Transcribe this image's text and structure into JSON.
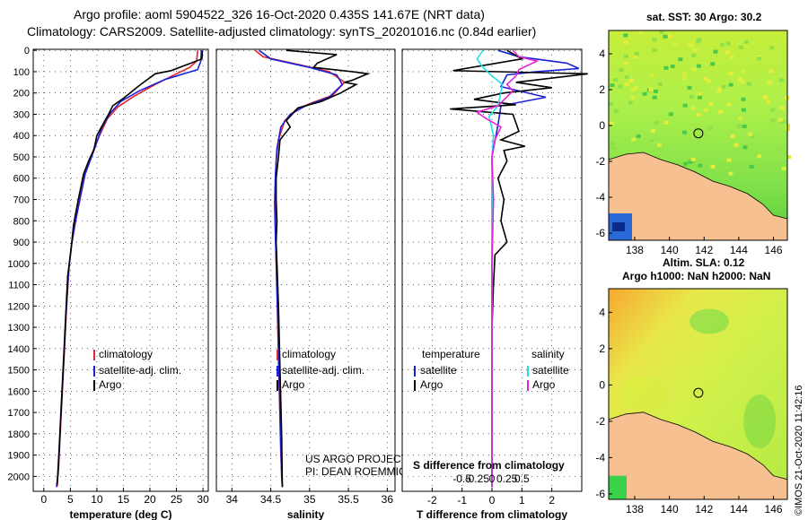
{
  "header": {
    "line1": "Argo profile: aoml 5904522_326 16-Oct-2020 0.435S 141.67E (NRT data)",
    "line2": "Climatology: CARS2009. Satellite-adjusted climatology: synTS_20201016.nc (0.84d earlier)"
  },
  "colors": {
    "climatology": "#e8222a",
    "satellite": "#1a22d8",
    "argo": "#000000",
    "sal_satellite": "#22e0e8",
    "sal_argo": "#e822d8",
    "land": "#f7c090"
  },
  "chart_data": [
    {
      "type": "line",
      "id": "temp",
      "title": "",
      "xlabel": "temperature (deg C)",
      "ylabel": "",
      "xlim": [
        -2,
        31
      ],
      "ylim": [
        2070,
        -5
      ],
      "xticks": [
        0,
        5,
        10,
        15,
        20,
        25,
        30
      ],
      "xticklabels": [
        "0",
        "5",
        "10",
        "15",
        "20",
        "25",
        "30"
      ],
      "yticks": [
        0,
        100,
        200,
        300,
        400,
        500,
        600,
        700,
        800,
        900,
        1000,
        1100,
        1200,
        1300,
        1400,
        1500,
        1600,
        1700,
        1800,
        1900,
        2000
      ],
      "yticklabels": [
        "0",
        "100",
        "200",
        "300",
        "400",
        "500",
        "600",
        "700",
        "800",
        "900",
        "1000",
        "1100",
        "1200",
        "1300",
        "1400",
        "1500",
        "1600",
        "1700",
        "1800",
        "1900",
        "2000"
      ],
      "legend": [
        {
          "label": "climatology",
          "key": "climatology"
        },
        {
          "label": "satellite-adj. clim.",
          "key": "satellite"
        },
        {
          "label": "Argo",
          "key": "argo"
        }
      ],
      "series": [
        {
          "name": "climatology",
          "color": "climatology",
          "points": [
            [
              29.0,
              0
            ],
            [
              28.8,
              50
            ],
            [
              27.5,
              80
            ],
            [
              25,
              110
            ],
            [
              21,
              160
            ],
            [
              17,
              215
            ],
            [
              14,
              265
            ],
            [
              12,
              320
            ],
            [
              10.5,
              400
            ],
            [
              9.3,
              470
            ],
            [
              8,
              550
            ],
            [
              6.9,
              680
            ],
            [
              6,
              800
            ],
            [
              5.3,
              900
            ],
            [
              4.8,
              1000
            ],
            [
              4.3,
              1200
            ],
            [
              3.9,
              1400
            ],
            [
              3.5,
              1600
            ],
            [
              3.1,
              1800
            ],
            [
              2.8,
              1950
            ],
            [
              2.5,
              2050
            ]
          ]
        },
        {
          "name": "satellite-adj. clim.",
          "color": "satellite",
          "points": [
            [
              29.7,
              0
            ],
            [
              29.6,
              50
            ],
            [
              29,
              90
            ],
            [
              23,
              135
            ],
            [
              18,
              190
            ],
            [
              14.5,
              240
            ],
            [
              12.5,
              295
            ],
            [
              11,
              360
            ],
            [
              10,
              430
            ],
            [
              9,
              500
            ],
            [
              7.8,
              580
            ],
            [
              6.8,
              700
            ],
            [
              5.9,
              810
            ],
            [
              5.2,
              920
            ],
            [
              4.7,
              1030
            ],
            [
              4.2,
              1230
            ],
            [
              3.8,
              1430
            ],
            [
              3.4,
              1630
            ],
            [
              3.0,
              1830
            ],
            [
              2.7,
              1980
            ],
            [
              2.4,
              2050
            ]
          ]
        },
        {
          "name": "Argo",
          "color": "argo",
          "points": [
            [
              29.9,
              0
            ],
            [
              29.8,
              40
            ],
            [
              24,
              95
            ],
            [
              21,
              110
            ],
            [
              18,
              165
            ],
            [
              15,
              225
            ],
            [
              13,
              260
            ],
            [
              12.2,
              300
            ],
            [
              11.5,
              330
            ],
            [
              10,
              400
            ],
            [
              9.4,
              470
            ],
            [
              8.6,
              510
            ],
            [
              7.5,
              580
            ],
            [
              6.5,
              700
            ],
            [
              5.6,
              820
            ],
            [
              5.1,
              940
            ],
            [
              4.5,
              1060
            ],
            [
              4.1,
              1260
            ],
            [
              3.7,
              1460
            ],
            [
              3.3,
              1660
            ],
            [
              2.9,
              1860
            ],
            [
              2.6,
              2000
            ],
            [
              2.5,
              2040
            ]
          ]
        }
      ]
    },
    {
      "type": "line",
      "id": "sal",
      "title": "",
      "xlabel": "salinity",
      "ylabel": "",
      "xlim": [
        33.8,
        36.1
      ],
      "ylim": [
        2070,
        -5
      ],
      "xticks": [
        34,
        34.5,
        35,
        35.5,
        36
      ],
      "xticklabels": [
        "34",
        "34.5",
        "35",
        "35.5",
        "36"
      ],
      "legend": [
        {
          "label": "climatology",
          "key": "climatology"
        },
        {
          "label": "satellite-adj. clim.",
          "key": "satellite"
        },
        {
          "label": "Argo",
          "key": "argo"
        }
      ],
      "credit": [
        "US ARGO PROJECT",
        "PI: DEAN ROEMMICH"
      ],
      "series": [
        {
          "name": "climatology",
          "color": "climatology",
          "points": [
            [
              34.3,
              0
            ],
            [
              34.4,
              30
            ],
            [
              34.9,
              70
            ],
            [
              35.25,
              100
            ],
            [
              35.45,
              150
            ],
            [
              35.3,
              210
            ],
            [
              35.0,
              250
            ],
            [
              34.82,
              280
            ],
            [
              34.68,
              330
            ],
            [
              34.6,
              420
            ],
            [
              34.57,
              520
            ],
            [
              34.56,
              650
            ],
            [
              34.56,
              800
            ],
            [
              34.57,
              1000
            ],
            [
              34.59,
              1300
            ],
            [
              34.61,
              1600
            ],
            [
              34.63,
              1900
            ],
            [
              34.65,
              2050
            ]
          ]
        },
        {
          "name": "satellite-adj. clim.",
          "color": "satellite",
          "points": [
            [
              34.35,
              0
            ],
            [
              34.5,
              40
            ],
            [
              35.0,
              80
            ],
            [
              35.35,
              115
            ],
            [
              35.42,
              160
            ],
            [
              35.25,
              220
            ],
            [
              34.95,
              260
            ],
            [
              34.75,
              300
            ],
            [
              34.63,
              360
            ],
            [
              34.58,
              460
            ],
            [
              34.56,
              580
            ],
            [
              34.55,
              720
            ],
            [
              34.56,
              880
            ],
            [
              34.58,
              1100
            ],
            [
              34.6,
              1400
            ],
            [
              34.62,
              1700
            ],
            [
              34.64,
              2000
            ],
            [
              34.65,
              2050
            ]
          ]
        },
        {
          "name": "Argo",
          "color": "argo",
          "points": [
            [
              34.7,
              0
            ],
            [
              35.35,
              20
            ],
            [
              35.1,
              60
            ],
            [
              35.05,
              80
            ],
            [
              35.55,
              100
            ],
            [
              35.75,
              110
            ],
            [
              35.55,
              140
            ],
            [
              35.45,
              150
            ],
            [
              35.6,
              160
            ],
            [
              35.4,
              200
            ],
            [
              35.15,
              240
            ],
            [
              34.85,
              270
            ],
            [
              34.8,
              290
            ],
            [
              34.7,
              330
            ],
            [
              34.75,
              360
            ],
            [
              34.62,
              420
            ],
            [
              34.6,
              500
            ],
            [
              34.57,
              600
            ],
            [
              34.57,
              700
            ],
            [
              34.58,
              800
            ],
            [
              34.57,
              900
            ],
            [
              34.58,
              1000
            ],
            [
              34.6,
              1200
            ],
            [
              34.62,
              1500
            ],
            [
              34.64,
              1800
            ],
            [
              34.65,
              2050
            ]
          ]
        }
      ]
    },
    {
      "type": "line",
      "id": "diff",
      "title": "",
      "xlabel": "T difference from climatology",
      "ylabel": "",
      "xlim": [
        -3,
        3
      ],
      "ylim": [
        2070,
        -5
      ],
      "xticks": [
        -2,
        -1,
        0,
        1,
        2
      ],
      "xticklabels": [
        "-2",
        "-1",
        "0",
        "1",
        "2"
      ],
      "sxlabel": "S difference from climatology",
      "sxticks": [
        -0.5,
        -0.25,
        0,
        0.25,
        0.5
      ],
      "sxticklabels": [
        "-0.5",
        "-0.25",
        "0",
        "0.25",
        "0.5"
      ],
      "legend_t_title": "temperature",
      "legend_s_title": "salinity",
      "legend_t": [
        {
          "label": "satellite",
          "key": "satellite"
        },
        {
          "label": "Argo",
          "key": "argo"
        }
      ],
      "legend_s": [
        {
          "label": "satellite",
          "key": "sal_satellite"
        },
        {
          "label": "Argo",
          "key": "sal_argo"
        }
      ],
      "series": [
        {
          "name": "T satellite",
          "color": "satellite",
          "points": [
            [
              0.2,
              0
            ],
            [
              0.9,
              30
            ],
            [
              2.5,
              60
            ],
            [
              2.9,
              85
            ],
            [
              1.5,
              100
            ],
            [
              0.5,
              115
            ],
            [
              0.3,
              170
            ],
            [
              1.8,
              220
            ],
            [
              0.3,
              260
            ],
            [
              0.2,
              350
            ],
            [
              0,
              500
            ],
            [
              0,
              700
            ],
            [
              0,
              1000
            ],
            [
              0,
              1500
            ],
            [
              0,
              2050
            ]
          ]
        },
        {
          "name": "T Argo",
          "color": "argo",
          "points": [
            [
              0.5,
              0
            ],
            [
              1.0,
              40
            ],
            [
              -1.3,
              95
            ],
            [
              3.2,
              110
            ],
            [
              0.8,
              150
            ],
            [
              2.0,
              175
            ],
            [
              0.4,
              200
            ],
            [
              -0.6,
              230
            ],
            [
              0.8,
              255
            ],
            [
              -1.4,
              275
            ],
            [
              0.7,
              300
            ],
            [
              0.9,
              380
            ],
            [
              0.3,
              420
            ],
            [
              1.1,
              450
            ],
            [
              0.4,
              470
            ],
            [
              0.5,
              520
            ],
            [
              0.2,
              600
            ],
            [
              0.4,
              700
            ],
            [
              0.3,
              800
            ],
            [
              0.5,
              900
            ],
            [
              0.1,
              960
            ],
            [
              0.05,
              1100
            ],
            [
              0,
              1300
            ],
            [
              0,
              1600
            ],
            [
              0,
              1900
            ],
            [
              0,
              2050
            ]
          ]
        },
        {
          "name": "S satellite",
          "color": "sal_satellite",
          "points": [
            [
              -0.3,
              0
            ],
            [
              -0.5,
              40
            ],
            [
              -0.3,
              80
            ],
            [
              0,
              120
            ],
            [
              0.35,
              160
            ],
            [
              0.2,
              260
            ],
            [
              -0.1,
              310
            ],
            [
              0.05,
              400
            ],
            [
              0,
              500
            ],
            [
              0,
              800
            ],
            [
              0,
              1200
            ],
            [
              0,
              1600
            ],
            [
              0,
              2050
            ]
          ]
        },
        {
          "name": "S Argo",
          "color": "sal_argo",
          "points": [
            [
              0.7,
              0
            ],
            [
              0.9,
              30
            ],
            [
              1.5,
              50
            ],
            [
              0.9,
              90
            ],
            [
              0.8,
              120
            ],
            [
              0.5,
              160
            ],
            [
              0.7,
              190
            ],
            [
              0.2,
              260
            ],
            [
              -0.5,
              290
            ],
            [
              -0.2,
              320
            ],
            [
              0.3,
              360
            ],
            [
              0.1,
              420
            ],
            [
              0,
              500
            ],
            [
              0.05,
              700
            ],
            [
              0,
              1000
            ],
            [
              0,
              1500
            ],
            [
              0,
              2050
            ]
          ]
        }
      ]
    },
    {
      "type": "heatmap",
      "id": "sst",
      "title": "sat. SST: 30 Argo: 30.2",
      "xlim": [
        136.5,
        146.8
      ],
      "ylim": [
        -6.4,
        5.3
      ],
      "xticks": [
        138,
        140,
        142,
        144,
        146
      ],
      "xticklabels": [
        "138",
        "140",
        "142",
        "144",
        "146"
      ],
      "yticks": [
        4,
        2,
        0,
        -2,
        -4,
        -6
      ],
      "yticklabels": [
        "4",
        "2",
        "0",
        "-2",
        "-4",
        "-6"
      ],
      "float": [
        141.67,
        -0.435
      ]
    },
    {
      "type": "heatmap",
      "id": "sla",
      "title": "Altim. SLA: 0.12",
      "title2": "Argo h1000: NaN h2000: NaN",
      "xlim": [
        136.5,
        146.8
      ],
      "ylim": [
        -6.3,
        5.3
      ],
      "xticks": [
        138,
        140,
        142,
        144,
        146
      ],
      "xticklabels": [
        "138",
        "140",
        "142",
        "144",
        "146"
      ],
      "yticks": [
        4,
        2,
        0,
        -2,
        -4,
        -6
      ],
      "yticklabels": [
        "4",
        "2",
        "0",
        "-2",
        "-4",
        "-6"
      ],
      "float": [
        141.67,
        -0.435
      ]
    }
  ],
  "footer": {
    "credit": "©IMOS 21-Oct-2020 11:42:16"
  }
}
